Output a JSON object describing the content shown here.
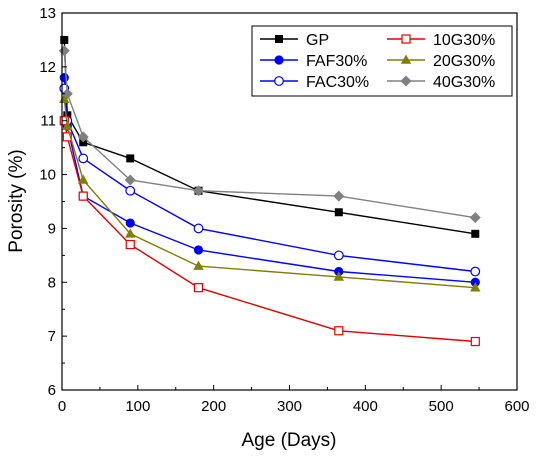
{
  "chart_data": {
    "type": "line",
    "title": "",
    "xlabel": "Age (Days)",
    "ylabel": "Porosity (%)",
    "xlim": [
      0,
      600
    ],
    "ylim": [
      6,
      13
    ],
    "xticks": [
      "0",
      "100",
      "200",
      "300",
      "400",
      "500",
      "600"
    ],
    "yticks": [
      "6",
      "7",
      "8",
      "9",
      "10",
      "11",
      "12",
      "13"
    ],
    "grid": false,
    "legend_position": "top-right",
    "x": [
      3,
      7,
      28,
      90,
      180,
      365,
      545
    ],
    "series": [
      {
        "name": "GP",
        "color": "#000000",
        "marker": "square-filled",
        "values": [
          12.5,
          11.1,
          10.6,
          10.3,
          9.7,
          9.3,
          8.9
        ]
      },
      {
        "name": "FAF30%",
        "color": "#0000ff",
        "marker": "circle-filled",
        "values": [
          11.8,
          10.9,
          9.6,
          9.1,
          8.6,
          8.2,
          8.0
        ]
      },
      {
        "name": "FAC30%",
        "color": "#0000ff",
        "marker": "circle-open",
        "values": [
          11.6,
          11.0,
          10.3,
          9.7,
          9.0,
          8.5,
          8.2
        ]
      },
      {
        "name": "10G30%",
        "color": "#e00000",
        "marker": "square-open",
        "values": [
          11.0,
          10.7,
          9.6,
          8.7,
          7.9,
          7.1,
          6.9
        ]
      },
      {
        "name": "20G30%",
        "color": "#808000",
        "marker": "triangle-filled",
        "values": [
          11.4,
          10.9,
          9.9,
          8.9,
          8.3,
          8.1,
          7.9
        ]
      },
      {
        "name": "40G30%",
        "color": "#808080",
        "marker": "diamond-filled",
        "values": [
          12.3,
          11.5,
          10.7,
          9.9,
          9.7,
          9.6,
          9.2
        ]
      }
    ]
  }
}
